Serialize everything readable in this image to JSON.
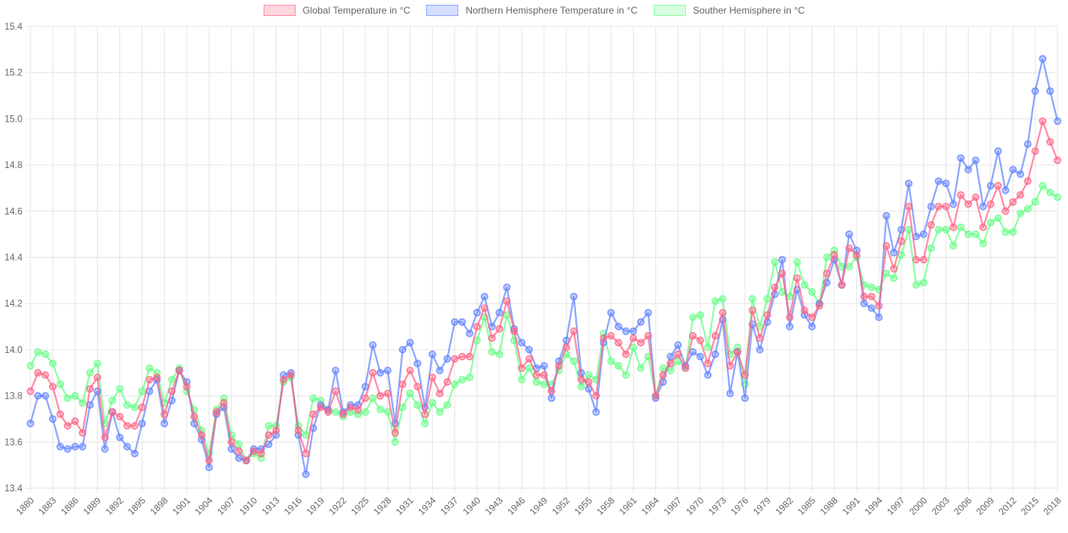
{
  "chart": {
    "title": "",
    "legend_position": "top",
    "axis_tick_color": "#666666",
    "gridline_color": "#e6e6e6",
    "background_color": "#ffffff"
  },
  "chart_data": {
    "type": "line",
    "xlabel": "",
    "ylabel": "",
    "ylim": [
      13.4,
      15.4
    ],
    "y_tick_step": 0.2,
    "grid": true,
    "legend_position": "top",
    "y_ticks": [
      "15.4",
      "15.2",
      "15.0",
      "14.8",
      "14.6",
      "14.4",
      "14.2",
      "14.0",
      "13.8",
      "13.6",
      "13.4"
    ],
    "x_tick_step": 3,
    "x_ticks": [
      1880,
      1883,
      1886,
      1889,
      1892,
      1895,
      1898,
      1901,
      1904,
      1907,
      1910,
      1913,
      1916,
      1919,
      1922,
      1925,
      1928,
      1931,
      1934,
      1937,
      1940,
      1943,
      1946,
      1949,
      1952,
      1955,
      1958,
      1961,
      1964,
      1967,
      1970,
      1973,
      1976,
      1979,
      1982,
      1985,
      1988,
      1991,
      1994,
      1997,
      2000,
      2003,
      2006,
      2009,
      2012,
      2015,
      2018
    ],
    "x": [
      1880,
      1881,
      1882,
      1883,
      1884,
      1885,
      1886,
      1887,
      1888,
      1889,
      1890,
      1891,
      1892,
      1893,
      1894,
      1895,
      1896,
      1897,
      1898,
      1899,
      1900,
      1901,
      1902,
      1903,
      1904,
      1905,
      1906,
      1907,
      1908,
      1909,
      1910,
      1911,
      1912,
      1913,
      1914,
      1915,
      1916,
      1917,
      1918,
      1919,
      1920,
      1921,
      1922,
      1923,
      1924,
      1925,
      1926,
      1927,
      1928,
      1929,
      1930,
      1931,
      1932,
      1933,
      1934,
      1935,
      1936,
      1937,
      1938,
      1939,
      1940,
      1941,
      1942,
      1943,
      1944,
      1945,
      1946,
      1947,
      1948,
      1949,
      1950,
      1951,
      1952,
      1953,
      1954,
      1955,
      1956,
      1957,
      1958,
      1959,
      1960,
      1961,
      1962,
      1963,
      1964,
      1965,
      1966,
      1967,
      1968,
      1969,
      1970,
      1971,
      1972,
      1973,
      1974,
      1975,
      1976,
      1977,
      1978,
      1979,
      1980,
      1981,
      1982,
      1983,
      1984,
      1985,
      1986,
      1987,
      1988,
      1989,
      1990,
      1991,
      1992,
      1993,
      1994,
      1995,
      1996,
      1997,
      1998,
      1999,
      2000,
      2001,
      2002,
      2003,
      2004,
      2005,
      2006,
      2007,
      2008,
      2009,
      2010,
      2011,
      2012,
      2013,
      2014,
      2015,
      2016,
      2017,
      2018
    ],
    "series": [
      {
        "name": "Global Temperature in °C",
        "color": "#FF6384",
        "values": [
          13.82,
          13.9,
          13.89,
          13.84,
          13.72,
          13.67,
          13.69,
          13.64,
          13.83,
          13.88,
          13.62,
          13.73,
          13.71,
          13.67,
          13.67,
          13.75,
          13.87,
          13.88,
          13.72,
          13.82,
          13.91,
          13.84,
          13.71,
          13.63,
          13.52,
          13.73,
          13.77,
          13.6,
          13.56,
          13.52,
          13.56,
          13.55,
          13.63,
          13.65,
          13.87,
          13.89,
          13.65,
          13.55,
          13.72,
          13.75,
          13.73,
          13.82,
          13.72,
          13.75,
          13.74,
          13.79,
          13.9,
          13.8,
          13.81,
          13.64,
          13.85,
          13.91,
          13.84,
          13.72,
          13.88,
          13.81,
          13.86,
          13.96,
          13.97,
          13.97,
          14.1,
          14.18,
          14.05,
          14.09,
          14.21,
          14.08,
          13.92,
          13.96,
          13.89,
          13.89,
          13.82,
          13.93,
          14.01,
          14.08,
          13.87,
          13.86,
          13.8,
          14.05,
          14.06,
          14.03,
          13.98,
          14.05,
          14.03,
          14.06,
          13.8,
          13.89,
          13.94,
          13.98,
          13.92,
          14.06,
          14.04,
          13.94,
          14.06,
          14.16,
          13.93,
          13.99,
          13.89,
          14.17,
          14.05,
          14.15,
          14.27,
          14.33,
          14.14,
          14.31,
          14.17,
          14.14,
          14.19,
          14.33,
          14.41,
          14.28,
          14.44,
          14.41,
          14.23,
          14.23,
          14.19,
          14.45,
          14.35,
          14.47,
          14.62,
          14.39,
          14.39,
          14.54,
          14.62,
          14.62,
          14.53,
          14.67,
          14.63,
          14.66,
          14.53,
          14.63,
          14.71,
          14.6,
          14.64,
          14.67,
          14.73,
          14.86,
          14.99,
          14.9,
          14.82
        ]
      },
      {
        "name": "Northern Hemisphere Temperature in °C",
        "color": "#6384FF",
        "values": [
          13.68,
          13.8,
          13.8,
          13.7,
          13.58,
          13.57,
          13.58,
          13.58,
          13.76,
          13.82,
          13.57,
          13.73,
          13.62,
          13.58,
          13.55,
          13.68,
          13.82,
          13.87,
          13.68,
          13.78,
          13.91,
          13.86,
          13.68,
          13.61,
          13.49,
          13.72,
          13.75,
          13.57,
          13.53,
          13.52,
          13.57,
          13.57,
          13.59,
          13.63,
          13.89,
          13.9,
          13.63,
          13.46,
          13.66,
          13.76,
          13.74,
          13.91,
          13.73,
          13.76,
          13.76,
          13.84,
          14.02,
          13.9,
          13.91,
          13.68,
          14.0,
          14.03,
          13.94,
          13.75,
          13.98,
          13.91,
          13.96,
          14.12,
          14.12,
          14.07,
          14.16,
          14.23,
          14.1,
          14.16,
          14.27,
          14.09,
          14.03,
          14.0,
          13.92,
          13.93,
          13.79,
          13.95,
          14.04,
          14.23,
          13.9,
          13.83,
          13.73,
          14.03,
          14.16,
          14.1,
          14.08,
          14.08,
          14.12,
          14.16,
          13.79,
          13.86,
          13.97,
          14.02,
          13.93,
          13.99,
          13.97,
          13.89,
          13.98,
          14.13,
          13.81,
          13.99,
          13.79,
          14.11,
          14.0,
          14.12,
          14.24,
          14.39,
          14.1,
          14.26,
          14.15,
          14.1,
          14.2,
          14.29,
          14.39,
          14.28,
          14.5,
          14.43,
          14.2,
          14.18,
          14.14,
          14.58,
          14.42,
          14.52,
          14.72,
          14.49,
          14.5,
          14.62,
          14.73,
          14.72,
          14.63,
          14.83,
          14.78,
          14.82,
          14.62,
          14.71,
          14.86,
          14.69,
          14.78,
          14.76,
          14.89,
          15.12,
          15.26,
          15.12,
          14.99
        ]
      },
      {
        "name": "Souther Hemisphere in °C",
        "color": "#63FF84",
        "values": [
          13.93,
          13.99,
          13.98,
          13.94,
          13.85,
          13.79,
          13.8,
          13.77,
          13.9,
          13.94,
          13.68,
          13.78,
          13.83,
          13.76,
          13.75,
          13.82,
          13.92,
          13.9,
          13.77,
          13.87,
          13.92,
          13.82,
          13.74,
          13.65,
          13.55,
          13.74,
          13.79,
          13.63,
          13.59,
          13.52,
          13.55,
          13.53,
          13.67,
          13.67,
          13.86,
          13.88,
          13.67,
          13.63,
          13.79,
          13.78,
          13.74,
          13.73,
          13.71,
          13.73,
          13.72,
          13.73,
          13.79,
          13.74,
          13.73,
          13.6,
          13.75,
          13.81,
          13.76,
          13.68,
          13.77,
          13.73,
          13.76,
          13.85,
          13.87,
          13.88,
          14.04,
          14.14,
          13.99,
          13.98,
          14.15,
          14.04,
          13.87,
          13.92,
          13.86,
          13.85,
          13.85,
          13.91,
          13.98,
          13.95,
          13.84,
          13.89,
          13.87,
          14.07,
          13.95,
          13.93,
          13.89,
          14.01,
          13.92,
          13.97,
          13.8,
          13.92,
          13.91,
          13.95,
          13.92,
          14.14,
          14.15,
          14.01,
          14.21,
          14.22,
          13.98,
          14.01,
          13.85,
          14.22,
          14.1,
          14.22,
          14.38,
          14.25,
          14.23,
          14.38,
          14.28,
          14.25,
          14.2,
          14.4,
          14.43,
          14.36,
          14.36,
          14.4,
          14.28,
          14.27,
          14.26,
          14.33,
          14.31,
          14.41,
          14.52,
          14.28,
          14.29,
          14.44,
          14.52,
          14.52,
          14.45,
          14.53,
          14.5,
          14.5,
          14.46,
          14.55,
          14.57,
          14.51,
          14.51,
          14.59,
          14.61,
          14.64,
          14.71,
          14.68,
          14.66
        ]
      }
    ]
  }
}
